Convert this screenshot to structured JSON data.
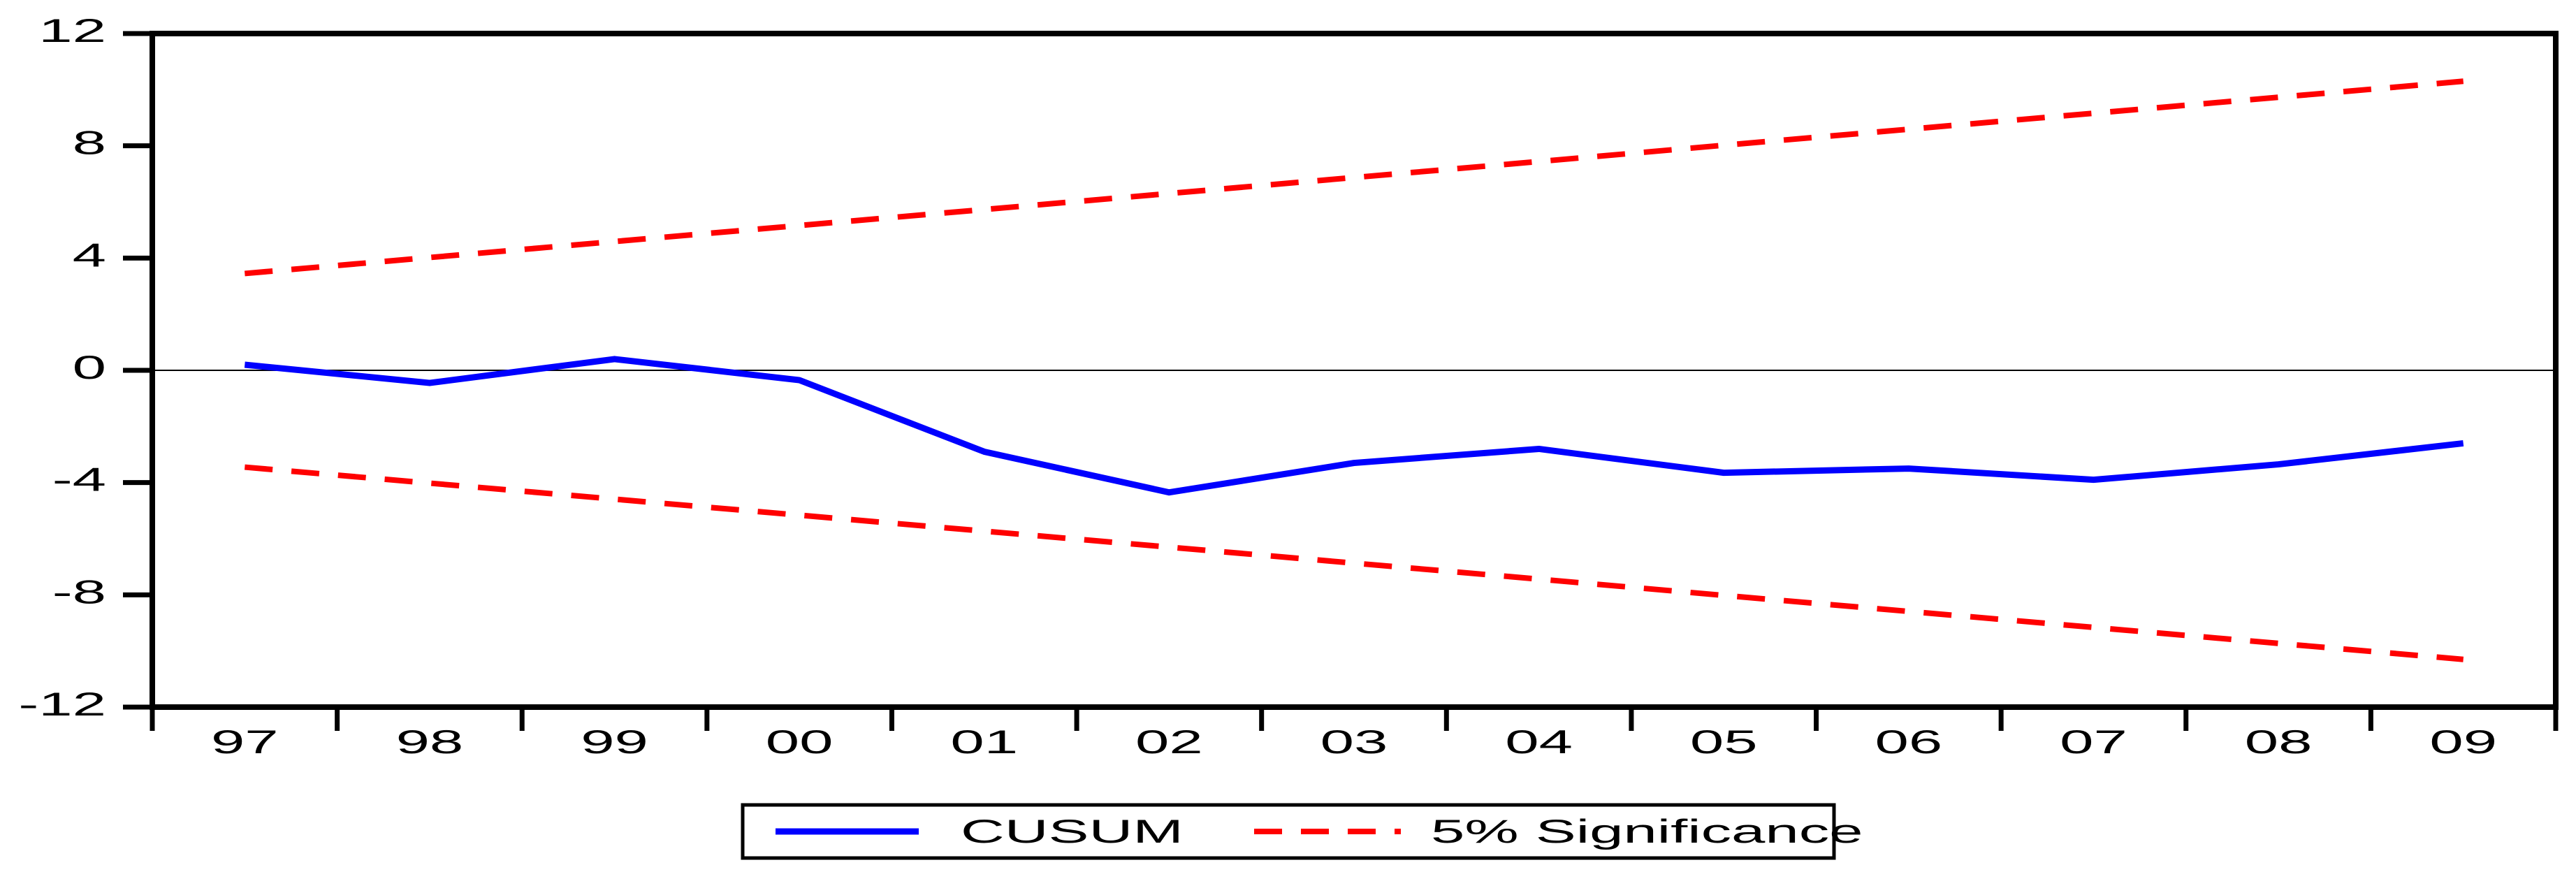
{
  "figure": {
    "background": "#ffffff",
    "plot_border_color": "#000000",
    "zero_line_color": "#000000",
    "legend": {
      "position": "bottom-center",
      "border_color": "#000000",
      "items": [
        {
          "label": "CUSUM",
          "color": "#0000ff",
          "style": "solid"
        },
        {
          "label": "5% Significance",
          "color": "#ff0000",
          "style": "dashed"
        }
      ]
    }
  },
  "chart_data": {
    "type": "line",
    "title": "",
    "xlabel": "",
    "ylabel": "",
    "categories": [
      "97",
      "98",
      "99",
      "00",
      "01",
      "02",
      "03",
      "04",
      "05",
      "06",
      "07",
      "08",
      "09"
    ],
    "ylim": [
      -12,
      12
    ],
    "yticks": [
      -12,
      -8,
      -4,
      0,
      4,
      8,
      12
    ],
    "zero_line": true,
    "grid": false,
    "legend_position": "bottom",
    "series": [
      {
        "name": "CUSUM",
        "color": "#0000ff",
        "style": "solid",
        "values": [
          0.2,
          -0.45,
          0.4,
          -0.35,
          -2.9,
          -4.35,
          -3.3,
          -2.8,
          -3.65,
          -3.5,
          -3.9,
          -3.35,
          -2.6
        ]
      },
      {
        "name": "5% Significance (upper)",
        "color": "#ff0000",
        "style": "dashed",
        "values": [
          3.45,
          4.02,
          4.59,
          5.16,
          5.73,
          6.3,
          6.87,
          7.44,
          8.02,
          8.59,
          9.16,
          9.73,
          10.3
        ]
      },
      {
        "name": "5% Significance (lower)",
        "color": "#ff0000",
        "style": "dashed",
        "values": [
          -3.45,
          -4.02,
          -4.59,
          -5.16,
          -5.73,
          -6.3,
          -6.87,
          -7.44,
          -8.02,
          -8.59,
          -9.16,
          -9.73,
          -10.3
        ]
      }
    ]
  }
}
